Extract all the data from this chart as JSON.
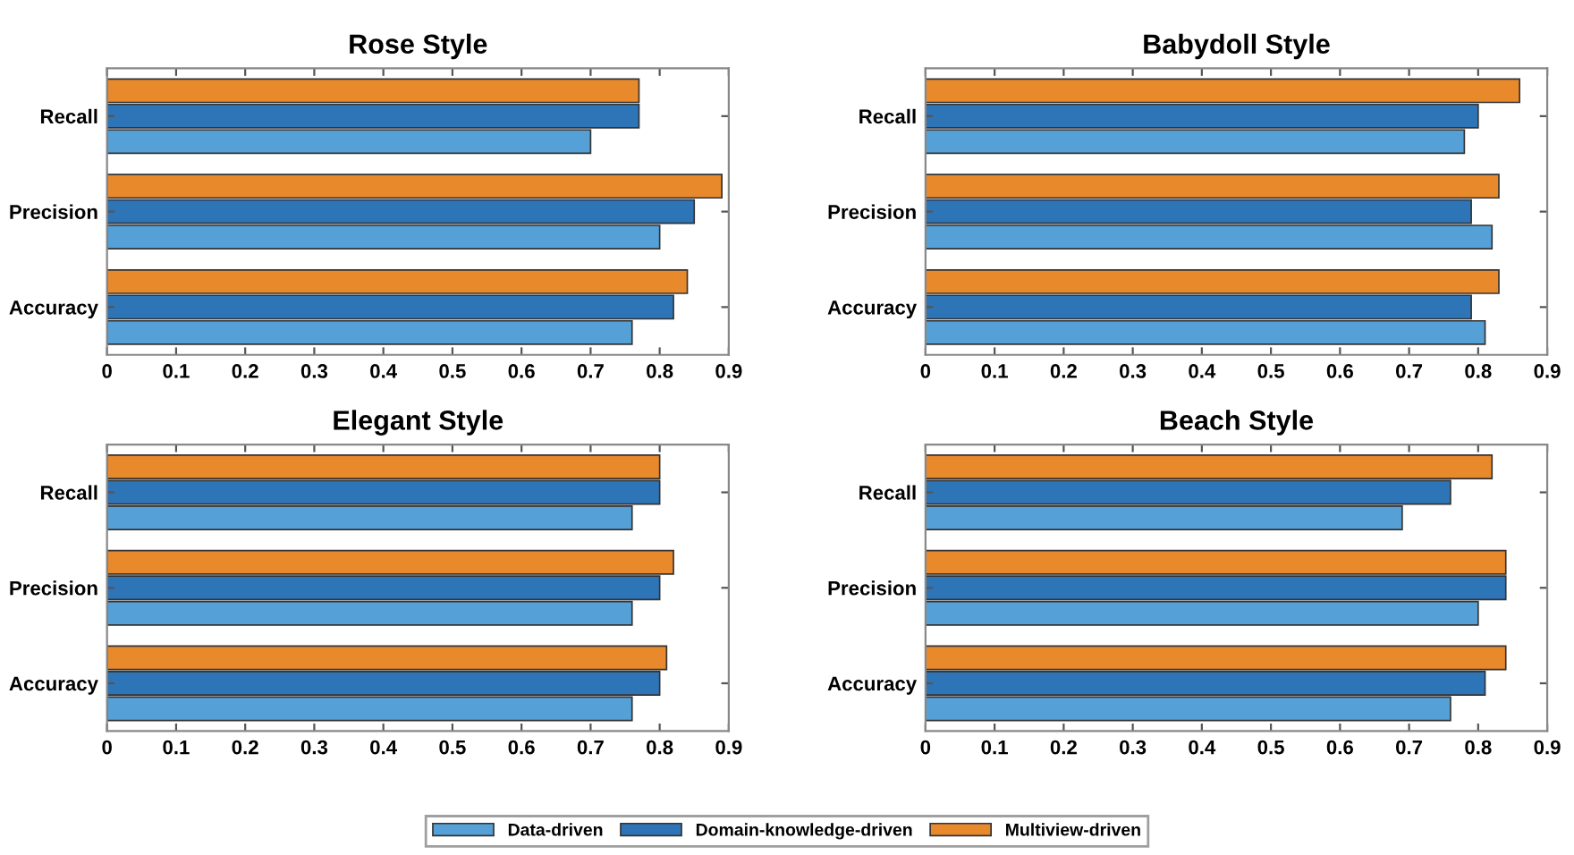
{
  "chart_data": [
    {
      "type": "bar",
      "orientation": "horizontal",
      "title": "Rose Style",
      "categories": [
        "Recall",
        "Precision",
        "Accuracy"
      ],
      "xlim": [
        0,
        0.9
      ],
      "xticks": [
        0,
        0.1,
        0.2,
        0.3,
        0.4,
        0.5,
        0.6,
        0.7,
        0.8,
        0.9
      ],
      "grid": false,
      "series": [
        {
          "color": "#55a0d6",
          "values": [
            0.7,
            0.8,
            0.76
          ]
        },
        {
          "color": "#2e75b8",
          "values": [
            0.77,
            0.85,
            0.82
          ]
        },
        {
          "color": "#e8892c",
          "values": [
            0.77,
            0.89,
            0.84
          ]
        }
      ]
    },
    {
      "type": "bar",
      "orientation": "horizontal",
      "title": "Babydoll Style",
      "categories": [
        "Recall",
        "Precision",
        "Accuracy"
      ],
      "xlim": [
        0,
        0.9
      ],
      "xticks": [
        0,
        0.1,
        0.2,
        0.3,
        0.4,
        0.5,
        0.6,
        0.7,
        0.8,
        0.9
      ],
      "grid": false,
      "series": [
        {
          "color": "#55a0d6",
          "values": [
            0.78,
            0.82,
            0.81
          ]
        },
        {
          "color": "#2e75b8",
          "values": [
            0.8,
            0.79,
            0.79
          ]
        },
        {
          "color": "#e8892c",
          "values": [
            0.86,
            0.83,
            0.83
          ]
        }
      ]
    },
    {
      "type": "bar",
      "orientation": "horizontal",
      "title": "Elegant Style",
      "categories": [
        "Recall",
        "Precision",
        "Accuracy"
      ],
      "xlim": [
        0,
        0.9
      ],
      "xticks": [
        0,
        0.1,
        0.2,
        0.3,
        0.4,
        0.5,
        0.6,
        0.7,
        0.8,
        0.9
      ],
      "grid": false,
      "series": [
        {
          "color": "#55a0d6",
          "values": [
            0.76,
            0.76,
            0.76
          ]
        },
        {
          "color": "#2e75b8",
          "values": [
            0.8,
            0.8,
            0.8
          ]
        },
        {
          "color": "#e8892c",
          "values": [
            0.8,
            0.82,
            0.81
          ]
        }
      ]
    },
    {
      "type": "bar",
      "orientation": "horizontal",
      "title": "Beach Style",
      "categories": [
        "Recall",
        "Precision",
        "Accuracy"
      ],
      "xlim": [
        0,
        0.9
      ],
      "xticks": [
        0,
        0.1,
        0.2,
        0.3,
        0.4,
        0.5,
        0.6,
        0.7,
        0.8,
        0.9
      ],
      "grid": false,
      "legend": "bottom",
      "series": [
        {
          "name": "Data-driven",
          "color": "#55a0d6",
          "values": [
            0.69,
            0.8,
            0.76
          ]
        },
        {
          "name": "Domain-knowledge-driven",
          "color": "#2e75b8",
          "values": [
            0.76,
            0.84,
            0.81
          ]
        },
        {
          "name": "Multiview-driven",
          "color": "#e8892c",
          "values": [
            0.82,
            0.84,
            0.84
          ]
        }
      ]
    }
  ]
}
